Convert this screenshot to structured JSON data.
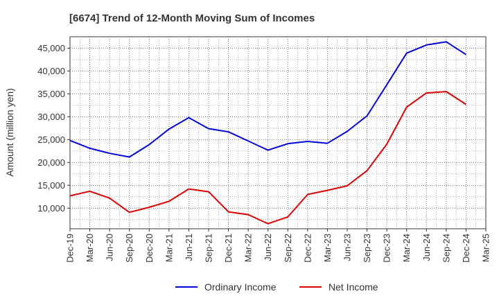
{
  "chart_data": {
    "type": "line",
    "title": "[6674]  Trend of 12-Month Moving Sum of Incomes",
    "xlabel": "",
    "ylabel": "Amount (million yen)",
    "categories": [
      "Dec-19",
      "Mar-20",
      "Jun-20",
      "Sep-20",
      "Dec-20",
      "Mar-21",
      "Jun-21",
      "Sep-21",
      "Dec-21",
      "Mar-22",
      "Jun-22",
      "Sep-22",
      "Dec-22",
      "Mar-23",
      "Jun-23",
      "Sep-23",
      "Dec-23",
      "Mar-24",
      "Jun-24",
      "Sep-24",
      "Dec-24",
      "Mar-25"
    ],
    "ylim": [
      5500,
      47500
    ],
    "yticks": [
      10000,
      15000,
      20000,
      25000,
      30000,
      35000,
      40000,
      45000
    ],
    "ytick_labels": [
      "10,000",
      "15,000",
      "20,000",
      "25,000",
      "30,000",
      "35,000",
      "40,000",
      "45,000"
    ],
    "grid": true,
    "legend_position": "bottom-center",
    "series": [
      {
        "name": "Ordinary Income",
        "color": "#0000dd",
        "values": [
          24800,
          23100,
          22000,
          21200,
          23900,
          27300,
          29800,
          27400,
          26700,
          24700,
          22700,
          24100,
          24600,
          24200,
          26800,
          30200,
          37000,
          43900,
          45700,
          46400,
          43600,
          null
        ]
      },
      {
        "name": "Net Income",
        "color": "#dd0000",
        "values": [
          12700,
          13700,
          12200,
          9100,
          10200,
          11500,
          14200,
          13600,
          9200,
          8600,
          6600,
          8100,
          13000,
          13900,
          14900,
          18200,
          24000,
          32100,
          35200,
          35500,
          32700,
          null
        ]
      }
    ]
  }
}
